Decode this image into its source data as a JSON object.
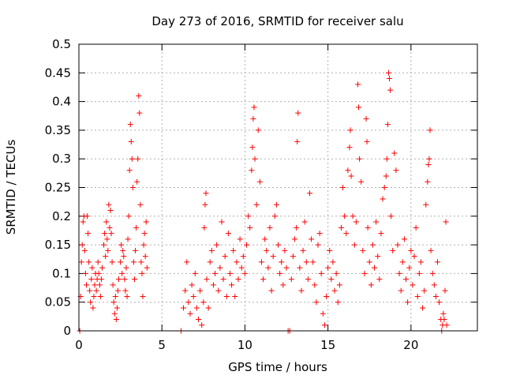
{
  "chart_data": {
    "type": "scatter",
    "title": "Day 273 of 2016, SRMTID for receiver salu",
    "xlabel": "GPS time / hours",
    "ylabel": "SRMTID / TECUs",
    "xlim": [
      0,
      24
    ],
    "ylim": [
      0,
      0.5
    ],
    "x_ticks": [
      0,
      5,
      10,
      15,
      20
    ],
    "x_tick_labels": [
      "0",
      "5",
      "10",
      "15",
      "20"
    ],
    "y_ticks": [
      0,
      0.05,
      0.1,
      0.15,
      0.2,
      0.25,
      0.3,
      0.35,
      0.4,
      0.45,
      0.5
    ],
    "y_tick_labels": [
      "0",
      "0.05",
      "0.1",
      "0.15",
      "0.2",
      "0.25",
      "0.3",
      "0.35",
      "0.4",
      "0.45",
      "0.5"
    ],
    "grid": true,
    "marker": "+",
    "color": "#ff0000",
    "series": [
      {
        "points": [
          [
            0.05,
            0.0
          ],
          [
            0.1,
            0.06
          ],
          [
            0.15,
            0.12
          ],
          [
            0.2,
            0.15
          ],
          [
            0.25,
            0.19
          ],
          [
            0.3,
            0.2
          ],
          [
            0.35,
            0.14
          ],
          [
            0.4,
            0.1
          ],
          [
            0.45,
            0.08
          ],
          [
            0.5,
            0.2
          ],
          [
            0.55,
            0.17
          ],
          [
            0.6,
            0.12
          ],
          [
            0.65,
            0.07
          ],
          [
            0.7,
            0.05
          ],
          [
            0.75,
            0.09
          ],
          [
            0.8,
            0.11
          ],
          [
            0.85,
            0.04
          ],
          [
            0.9,
            0.06
          ],
          [
            0.95,
            0.08
          ],
          [
            1.0,
            0.1
          ],
          [
            1.05,
            0.07
          ],
          [
            1.1,
            0.09
          ],
          [
            1.15,
            0.12
          ],
          [
            1.2,
            0.1
          ],
          [
            1.25,
            0.08
          ],
          [
            1.3,
            0.06
          ],
          [
            1.35,
            0.09
          ],
          [
            1.4,
            0.11
          ],
          [
            1.5,
            0.15
          ],
          [
            1.55,
            0.17
          ],
          [
            1.6,
            0.13
          ],
          [
            1.65,
            0.19
          ],
          [
            1.7,
            0.16
          ],
          [
            1.75,
            0.14
          ],
          [
            1.8,
            0.22
          ],
          [
            1.85,
            0.18
          ],
          [
            1.9,
            0.21
          ],
          [
            1.95,
            0.17
          ],
          [
            2.0,
            0.12
          ],
          [
            2.05,
            0.08
          ],
          [
            2.1,
            0.05
          ],
          [
            2.15,
            0.03
          ],
          [
            2.2,
            0.06
          ],
          [
            2.25,
            0.02
          ],
          [
            2.3,
            0.04
          ],
          [
            2.35,
            0.07
          ],
          [
            2.4,
            0.09
          ],
          [
            2.5,
            0.12
          ],
          [
            2.55,
            0.15
          ],
          [
            2.6,
            0.1
          ],
          [
            2.65,
            0.14
          ],
          [
            2.7,
            0.13
          ],
          [
            2.75,
            0.09
          ],
          [
            2.8,
            0.07
          ],
          [
            2.85,
            0.11
          ],
          [
            2.9,
            0.06
          ],
          [
            2.95,
            0.16
          ],
          [
            3.0,
            0.2
          ],
          [
            3.05,
            0.28
          ],
          [
            3.1,
            0.36
          ],
          [
            3.15,
            0.33
          ],
          [
            3.2,
            0.3
          ],
          [
            3.25,
            0.25
          ],
          [
            3.3,
            0.12
          ],
          [
            3.35,
            0.09
          ],
          [
            3.4,
            0.14
          ],
          [
            3.45,
            0.18
          ],
          [
            3.5,
            0.26
          ],
          [
            3.55,
            0.3
          ],
          [
            3.6,
            0.41
          ],
          [
            3.65,
            0.38
          ],
          [
            3.7,
            0.22
          ],
          [
            3.75,
            0.12
          ],
          [
            3.8,
            0.1
          ],
          [
            3.85,
            0.06
          ],
          [
            3.9,
            0.15
          ],
          [
            3.95,
            0.17
          ],
          [
            4.0,
            0.13
          ],
          [
            4.05,
            0.19
          ],
          [
            4.1,
            0.11
          ],
          [
            6.15,
            0.0
          ],
          [
            6.3,
            0.04
          ],
          [
            6.4,
            0.07
          ],
          [
            6.5,
            0.12
          ],
          [
            6.6,
            0.05
          ],
          [
            6.7,
            0.03
          ],
          [
            6.8,
            0.08
          ],
          [
            6.9,
            0.06
          ],
          [
            7.0,
            0.1
          ],
          [
            7.1,
            0.04
          ],
          [
            7.2,
            0.02
          ],
          [
            7.3,
            0.07
          ],
          [
            7.4,
            0.01
          ],
          [
            7.5,
            0.05
          ],
          [
            7.55,
            0.18
          ],
          [
            7.6,
            0.22
          ],
          [
            7.65,
            0.24
          ],
          [
            7.7,
            0.09
          ],
          [
            7.8,
            0.04
          ],
          [
            7.9,
            0.12
          ],
          [
            8.0,
            0.14
          ],
          [
            8.1,
            0.08
          ],
          [
            8.2,
            0.1
          ],
          [
            8.3,
            0.15
          ],
          [
            8.4,
            0.07
          ],
          [
            8.5,
            0.11
          ],
          [
            8.6,
            0.19
          ],
          [
            8.7,
            0.09
          ],
          [
            8.8,
            0.13
          ],
          [
            8.9,
            0.06
          ],
          [
            9.0,
            0.17
          ],
          [
            9.1,
            0.1
          ],
          [
            9.2,
            0.08
          ],
          [
            9.3,
            0.14
          ],
          [
            9.4,
            0.06
          ],
          [
            9.5,
            0.12
          ],
          [
            9.6,
            0.09
          ],
          [
            9.7,
            0.16
          ],
          [
            9.8,
            0.11
          ],
          [
            9.9,
            0.13
          ],
          [
            10.0,
            0.1
          ],
          [
            10.1,
            0.15
          ],
          [
            10.2,
            0.2
          ],
          [
            10.3,
            0.18
          ],
          [
            10.4,
            0.28
          ],
          [
            10.45,
            0.32
          ],
          [
            10.5,
            0.37
          ],
          [
            10.55,
            0.39
          ],
          [
            10.6,
            0.3
          ],
          [
            10.7,
            0.22
          ],
          [
            10.8,
            0.35
          ],
          [
            10.9,
            0.26
          ],
          [
            11.0,
            0.12
          ],
          [
            11.1,
            0.09
          ],
          [
            11.2,
            0.16
          ],
          [
            11.3,
            0.14
          ],
          [
            11.4,
            0.11
          ],
          [
            11.5,
            0.18
          ],
          [
            11.6,
            0.07
          ],
          [
            11.7,
            0.13
          ],
          [
            11.8,
            0.2
          ],
          [
            11.9,
            0.22
          ],
          [
            12.0,
            0.15
          ],
          [
            12.1,
            0.1
          ],
          [
            12.2,
            0.12
          ],
          [
            12.3,
            0.08
          ],
          [
            12.4,
            0.14
          ],
          [
            12.5,
            0.11
          ],
          [
            12.6,
            0.0
          ],
          [
            12.7,
            0.0
          ],
          [
            12.8,
            0.09
          ],
          [
            12.9,
            0.13
          ],
          [
            13.0,
            0.16
          ],
          [
            13.1,
            0.18
          ],
          [
            13.15,
            0.33
          ],
          [
            13.2,
            0.38
          ],
          [
            13.3,
            0.11
          ],
          [
            13.4,
            0.07
          ],
          [
            13.5,
            0.14
          ],
          [
            13.6,
            0.19
          ],
          [
            13.7,
            0.12
          ],
          [
            13.8,
            0.09
          ],
          [
            13.9,
            0.24
          ],
          [
            14.0,
            0.16
          ],
          [
            14.1,
            0.12
          ],
          [
            14.2,
            0.08
          ],
          [
            14.3,
            0.05
          ],
          [
            14.4,
            0.15
          ],
          [
            14.5,
            0.17
          ],
          [
            14.6,
            0.1
          ],
          [
            14.7,
            0.03
          ],
          [
            14.8,
            0.01
          ],
          [
            14.9,
            0.06
          ],
          [
            15.0,
            0.11
          ],
          [
            15.1,
            0.14
          ],
          [
            15.2,
            0.09
          ],
          [
            15.3,
            0.12
          ],
          [
            15.4,
            0.07
          ],
          [
            15.5,
            0.1
          ],
          [
            15.6,
            0.05
          ],
          [
            15.7,
            0.08
          ],
          [
            15.8,
            0.18
          ],
          [
            15.9,
            0.25
          ],
          [
            16.0,
            0.2
          ],
          [
            16.1,
            0.17
          ],
          [
            16.2,
            0.28
          ],
          [
            16.3,
            0.32
          ],
          [
            16.35,
            0.35
          ],
          [
            16.4,
            0.27
          ],
          [
            16.5,
            0.2
          ],
          [
            16.6,
            0.15
          ],
          [
            16.7,
            0.19
          ],
          [
            16.8,
            0.43
          ],
          [
            16.85,
            0.39
          ],
          [
            16.9,
            0.3
          ],
          [
            17.0,
            0.26
          ],
          [
            17.1,
            0.14
          ],
          [
            17.2,
            0.1
          ],
          [
            17.3,
            0.37
          ],
          [
            17.35,
            0.33
          ],
          [
            17.4,
            0.18
          ],
          [
            17.5,
            0.12
          ],
          [
            17.6,
            0.08
          ],
          [
            17.7,
            0.15
          ],
          [
            17.8,
            0.11
          ],
          [
            17.9,
            0.19
          ],
          [
            18.0,
            0.13
          ],
          [
            18.1,
            0.09
          ],
          [
            18.2,
            0.17
          ],
          [
            18.3,
            0.23
          ],
          [
            18.4,
            0.25
          ],
          [
            18.5,
            0.27
          ],
          [
            18.55,
            0.3
          ],
          [
            18.6,
            0.36
          ],
          [
            18.65,
            0.45
          ],
          [
            18.7,
            0.44
          ],
          [
            18.75,
            0.42
          ],
          [
            18.8,
            0.2
          ],
          [
            18.9,
            0.14
          ],
          [
            19.0,
            0.31
          ],
          [
            19.1,
            0.28
          ],
          [
            19.2,
            0.15
          ],
          [
            19.3,
            0.1
          ],
          [
            19.4,
            0.07
          ],
          [
            19.5,
            0.12
          ],
          [
            19.6,
            0.16
          ],
          [
            19.7,
            0.09
          ],
          [
            19.8,
            0.05
          ],
          [
            19.9,
            0.11
          ],
          [
            20.0,
            0.14
          ],
          [
            20.1,
            0.08
          ],
          [
            20.2,
            0.13
          ],
          [
            20.3,
            0.18
          ],
          [
            20.4,
            0.06
          ],
          [
            20.5,
            0.1
          ],
          [
            20.6,
            0.12
          ],
          [
            20.7,
            0.04
          ],
          [
            20.8,
            0.07
          ],
          [
            20.9,
            0.22
          ],
          [
            21.0,
            0.26
          ],
          [
            21.05,
            0.29
          ],
          [
            21.1,
            0.3
          ],
          [
            21.15,
            0.35
          ],
          [
            21.2,
            0.14
          ],
          [
            21.3,
            0.1
          ],
          [
            21.4,
            0.08
          ],
          [
            21.5,
            0.06
          ],
          [
            21.6,
            0.12
          ],
          [
            21.7,
            0.05
          ],
          [
            21.8,
            0.02
          ],
          [
            21.85,
            0.0
          ],
          [
            21.9,
            0.01
          ],
          [
            21.95,
            0.03
          ],
          [
            22.0,
            0.02
          ],
          [
            22.05,
            0.07
          ],
          [
            22.1,
            0.19
          ],
          [
            22.15,
            0.01
          ]
        ]
      }
    ]
  }
}
